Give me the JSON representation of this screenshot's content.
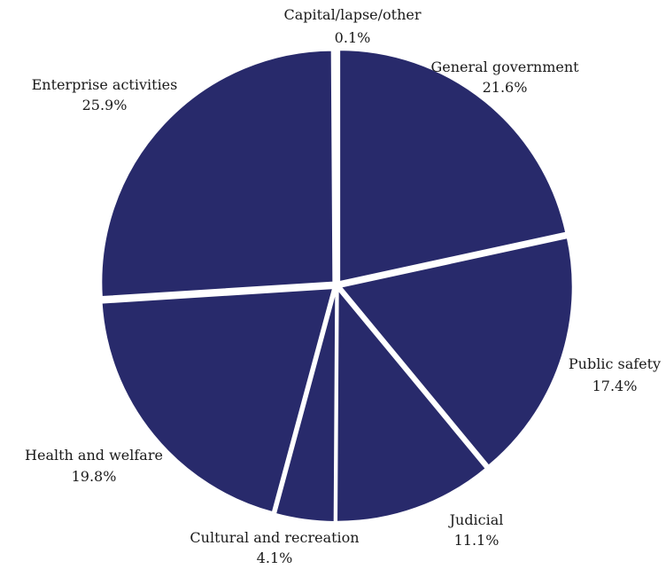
{
  "chart_data": {
    "type": "pie",
    "title": "",
    "start_angle": "12 o'clock",
    "direction": "clockwise",
    "exploded": true,
    "slice_color": "#282a6b",
    "separator_color": "#ffffff",
    "label_color": "#1a1a1a",
    "slices": [
      {
        "label": "General government",
        "value": 21.6,
        "value_label": "21.6%"
      },
      {
        "label": "Public safety",
        "value": 17.4,
        "value_label": "17.4%"
      },
      {
        "label": "Judicial",
        "value": 11.1,
        "value_label": "11.1%"
      },
      {
        "label": "Cultural and recreation",
        "value": 4.1,
        "value_label": "4.1%"
      },
      {
        "label": "Health and welfare",
        "value": 19.8,
        "value_label": "19.8%"
      },
      {
        "label": "Enterprise activities",
        "value": 25.9,
        "value_label": "25.9%"
      },
      {
        "label": "Capital/lapse/other",
        "value": 0.1,
        "value_label": "0.1%"
      }
    ]
  }
}
